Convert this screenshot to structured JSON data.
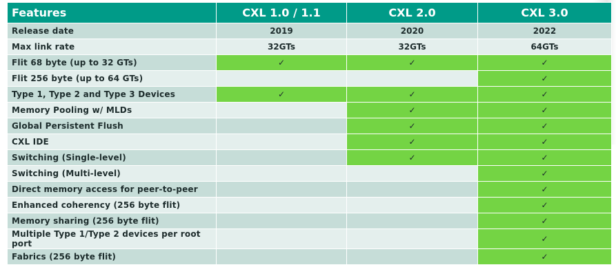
{
  "headers": [
    "Features",
    "CXL 1.0 / 1.1",
    "CXL 2.0",
    "CXL 3.0"
  ],
  "check_icon": "✓",
  "colors": {
    "header": "#009b88",
    "row_odd": "#c6ddd8",
    "row_even": "#e4efed",
    "supported": "#74d444"
  },
  "rows": [
    {
      "feature": "Release date",
      "values": [
        "2019",
        "2020",
        "2022"
      ]
    },
    {
      "feature": "Max link rate",
      "values": [
        "32GTs",
        "32GTs",
        "64GTs"
      ]
    },
    {
      "feature": "Flit 68 byte (up to 32 GTs)",
      "checks": [
        true,
        true,
        true
      ]
    },
    {
      "feature": "Flit 256 byte (up to 64 GTs)",
      "checks": [
        false,
        false,
        true
      ]
    },
    {
      "feature": "Type 1, Type 2 and Type 3 Devices",
      "checks": [
        true,
        true,
        true
      ]
    },
    {
      "feature": "Memory Pooling w/ MLDs",
      "checks": [
        false,
        true,
        true
      ]
    },
    {
      "feature": "Global Persistent Flush",
      "checks": [
        false,
        true,
        true
      ]
    },
    {
      "feature": "CXL IDE",
      "checks": [
        false,
        true,
        true
      ]
    },
    {
      "feature": "Switching (Single-level)",
      "checks": [
        false,
        true,
        true
      ]
    },
    {
      "feature": "Switching (Multi-level)",
      "checks": [
        false,
        false,
        true
      ]
    },
    {
      "feature": "Direct memory access for peer-to-peer",
      "checks": [
        false,
        false,
        true
      ]
    },
    {
      "feature": "Enhanced coherency (256 byte flit)",
      "checks": [
        false,
        false,
        true
      ]
    },
    {
      "feature": "Memory sharing (256 byte flit)",
      "checks": [
        false,
        false,
        true
      ]
    },
    {
      "feature": "Multiple Type 1/Type 2 devices per root port",
      "checks": [
        false,
        false,
        true
      ]
    },
    {
      "feature": "Fabrics (256 byte flit)",
      "checks": [
        false,
        false,
        true
      ]
    }
  ]
}
